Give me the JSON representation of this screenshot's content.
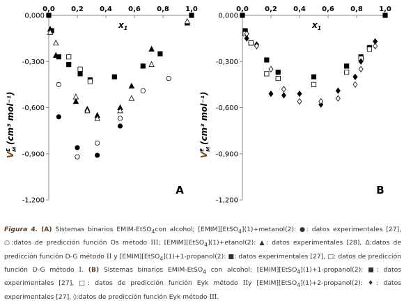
{
  "charts": [
    {
      "panel_label": "A",
      "xlabel": "x",
      "xlabel_sub": "1",
      "ylabel": "V",
      "ylabel_sup": "E",
      "ylabel_sub": "M",
      "ylabel_units": "(cm³ mol⁻¹)",
      "x_ticks": [
        "0,0",
        "0,2",
        "0,4",
        "0,6",
        "0,8",
        "1,0"
      ],
      "y_ticks": [
        "0,000",
        "-0,300",
        "-0,600",
        "-0,900",
        "-1,200"
      ]
    },
    {
      "panel_label": "B",
      "xlabel": "x",
      "xlabel_sub": "1",
      "ylabel": "V",
      "ylabel_sup": "E",
      "ylabel_sub": "M",
      "ylabel_units": "(cm³ mol⁻¹)",
      "x_ticks": [
        "0,0",
        "0,2",
        "0,4",
        "0,6",
        "0,8",
        "1,0"
      ],
      "y_ticks": [
        "0,000",
        "-0,300",
        "-0,600",
        "-0,900",
        "-1,200"
      ]
    }
  ],
  "chart_data": [
    {
      "type": "scatter",
      "xlim": [
        0,
        1
      ],
      "ylim": [
        -1.2,
        0
      ],
      "x_axis_position": "top",
      "grid": false,
      "legend": "none",
      "series": [
        {
          "marker": "circle-filled",
          "x": [
            0,
            0.07,
            0.2,
            0.34,
            0.5,
            1.0
          ],
          "y": [
            0,
            -0.66,
            -0.86,
            -0.91,
            -0.72,
            0
          ]
        },
        {
          "marker": "circle-open",
          "x": [
            0.07,
            0.2,
            0.34,
            0.5,
            0.66,
            0.84,
            1.0
          ],
          "y": [
            -0.45,
            -0.92,
            -0.83,
            -0.67,
            -0.49,
            -0.41,
            0
          ]
        },
        {
          "marker": "square-filled",
          "x": [
            0,
            0.02,
            0.07,
            0.14,
            0.22,
            0.29,
            0.46,
            0.66,
            0.78,
            1.0
          ],
          "y": [
            0,
            -0.1,
            -0.27,
            -0.32,
            -0.38,
            -0.42,
            -0.4,
            -0.33,
            -0.25,
            0
          ]
        },
        {
          "marker": "square-open",
          "x": [
            0.14,
            0.22,
            0.29
          ],
          "y": [
            -0.27,
            -0.35,
            -0.43
          ]
        },
        {
          "marker": "triangle-filled",
          "x": [
            0.01,
            0.05,
            0.19,
            0.27,
            0.34,
            0.5,
            0.58,
            0.72,
            0.97
          ],
          "y": [
            -0.09,
            -0.26,
            -0.56,
            -0.61,
            -0.65,
            -0.6,
            -0.46,
            -0.22,
            -0.05
          ]
        },
        {
          "marker": "triangle-open",
          "x": [
            0.01,
            0.05,
            0.19,
            0.27,
            0.34,
            0.5,
            0.58,
            0.72,
            0.97
          ],
          "y": [
            -0.11,
            -0.18,
            -0.53,
            -0.62,
            -0.67,
            -0.62,
            -0.54,
            -0.32,
            -0.04
          ]
        }
      ]
    },
    {
      "type": "scatter",
      "xlim": [
        0,
        1
      ],
      "ylim": [
        -1.2,
        0
      ],
      "x_axis_position": "top",
      "grid": false,
      "legend": "none",
      "series": [
        {
          "marker": "square-filled",
          "x": [
            0,
            0.02,
            0.06,
            0.17,
            0.25,
            0.5,
            0.73,
            0.83,
            0.89,
            1.0
          ],
          "y": [
            0,
            -0.1,
            -0.18,
            -0.29,
            -0.37,
            -0.4,
            -0.33,
            -0.27,
            -0.21,
            0
          ]
        },
        {
          "marker": "square-open",
          "x": [
            0.02,
            0.06,
            0.17,
            0.25,
            0.5,
            0.73,
            0.83,
            0.89
          ],
          "y": [
            -0.12,
            -0.18,
            -0.38,
            -0.41,
            -0.45,
            -0.37,
            -0.28,
            -0.22
          ]
        },
        {
          "marker": "diamond-filled",
          "x": [
            0.03,
            0.1,
            0.2,
            0.29,
            0.4,
            0.55,
            0.67,
            0.79,
            0.83,
            0.93
          ],
          "y": [
            -0.15,
            -0.19,
            -0.51,
            -0.52,
            -0.51,
            -0.58,
            -0.49,
            -0.4,
            -0.3,
            -0.17
          ]
        },
        {
          "marker": "diamond-open",
          "x": [
            0.03,
            0.1,
            0.2,
            0.29,
            0.4,
            0.55,
            0.67,
            0.79,
            0.83,
            0.93
          ],
          "y": [
            -0.12,
            -0.2,
            -0.35,
            -0.48,
            -0.56,
            -0.56,
            -0.54,
            -0.45,
            -0.35,
            -0.2
          ]
        }
      ]
    }
  ],
  "caption": {
    "figure_label": "Figura 4.",
    "part_a_label": "(A)",
    "segments": [
      " Sistemas binarios EMIM-EtSO",
      "4",
      "con alcohol; [EMIM][EtSO",
      "4",
      "](1)+metanol(2): ●: datos experimentales [27], ○:datos de predicción función Os método ",
      "III",
      "; [EMIM][EtSO",
      "4",
      "](1)+etanol(2): ▲: datos experimentales [28], Δ:datos de predicción función D-G método ",
      "II",
      " y [EMIM][EtSO",
      "4",
      "](1)+1-propanol(2): ■: datos experimentales [27], □: datos de predicción función D-G método ",
      "I",
      ". "
    ],
    "part_b_label": "(B)",
    "segments_b": [
      " Sistemas binarios EMIM-EtSO",
      "4",
      " con alcohol; [EMIM][EtSO",
      "4",
      "](1)+1-propanol(2): ■: datos experimentales [27], □:  datos de predicción función Eyk método ",
      "II",
      "y [EMIM][EtSO",
      "4",
      "](1)+2-propanol(2): ♦: datos experimentales [27], ◊:datos de predicción función Eyk método ",
      "III",
      "."
    ]
  }
}
